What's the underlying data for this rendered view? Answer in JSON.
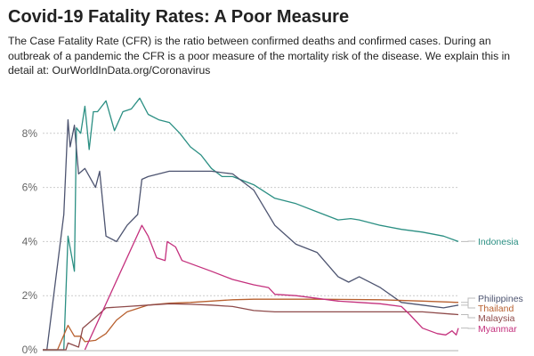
{
  "title": "Covid-19 Fatality Rates: A Poor Measure",
  "subtitle": "The Case Fatality Rate (CFR) is the ratio between confirmed deaths and confirmed cases. During an outbreak of a pandemic the CFR is a poor measure of the mortality risk of the disease. We explain this in detail at: OurWorldInData.org/Coronavirus",
  "chart_data": {
    "type": "line",
    "title": "Covid-19 Fatality Rates: A Poor Measure",
    "ylabel": "",
    "xlabel": "",
    "ylim": [
      0,
      9.5
    ],
    "xlim": [
      "2020-03-01",
      "2020-09-14"
    ],
    "yticks": [
      "0%",
      "2%",
      "4%",
      "6%",
      "8%"
    ],
    "grid": true,
    "legend": "right-end labels",
    "series": [
      {
        "name": "Indonesia",
        "color": "#2b8f83",
        "points": [
          [
            "2020-03-01",
            0
          ],
          [
            "2020-03-11",
            0
          ],
          [
            "2020-03-13",
            4.2
          ],
          [
            "2020-03-16",
            2.9
          ],
          [
            "2020-03-17",
            8.2
          ],
          [
            "2020-03-19",
            8.0
          ],
          [
            "2020-03-21",
            9.0
          ],
          [
            "2020-03-23",
            7.4
          ],
          [
            "2020-03-25",
            8.8
          ],
          [
            "2020-03-27",
            8.8
          ],
          [
            "2020-03-31",
            9.2
          ],
          [
            "2020-04-04",
            8.1
          ],
          [
            "2020-04-08",
            8.8
          ],
          [
            "2020-04-12",
            8.9
          ],
          [
            "2020-04-16",
            9.3
          ],
          [
            "2020-04-20",
            8.7
          ],
          [
            "2020-04-25",
            8.5
          ],
          [
            "2020-04-30",
            8.4
          ],
          [
            "2020-05-05",
            8.0
          ],
          [
            "2020-05-10",
            7.5
          ],
          [
            "2020-05-15",
            7.2
          ],
          [
            "2020-05-20",
            6.7
          ],
          [
            "2020-05-25",
            6.4
          ],
          [
            "2020-05-30",
            6.4
          ],
          [
            "2020-06-09",
            6.1
          ],
          [
            "2020-06-19",
            5.6
          ],
          [
            "2020-06-29",
            5.4
          ],
          [
            "2020-07-09",
            5.1
          ],
          [
            "2020-07-19",
            4.8
          ],
          [
            "2020-07-25",
            4.85
          ],
          [
            "2020-07-29",
            4.8
          ],
          [
            "2020-08-08",
            4.6
          ],
          [
            "2020-08-18",
            4.45
          ],
          [
            "2020-08-28",
            4.35
          ],
          [
            "2020-09-07",
            4.2
          ],
          [
            "2020-09-14",
            4.0
          ]
        ]
      },
      {
        "name": "Philippines",
        "color": "#4d5470",
        "points": [
          [
            "2020-03-01",
            0
          ],
          [
            "2020-03-03",
            0
          ],
          [
            "2020-03-11",
            5.0
          ],
          [
            "2020-03-13",
            8.5
          ],
          [
            "2020-03-14",
            7.5
          ],
          [
            "2020-03-16",
            8.3
          ],
          [
            "2020-03-18",
            6.5
          ],
          [
            "2020-03-21",
            6.7
          ],
          [
            "2020-03-26",
            6.0
          ],
          [
            "2020-03-28",
            6.6
          ],
          [
            "2020-03-31",
            4.2
          ],
          [
            "2020-04-05",
            4.0
          ],
          [
            "2020-04-10",
            4.6
          ],
          [
            "2020-04-15",
            5.0
          ],
          [
            "2020-04-17",
            6.3
          ],
          [
            "2020-04-20",
            6.4
          ],
          [
            "2020-04-30",
            6.6
          ],
          [
            "2020-05-10",
            6.6
          ],
          [
            "2020-05-20",
            6.6
          ],
          [
            "2020-05-30",
            6.5
          ],
          [
            "2020-06-09",
            5.9
          ],
          [
            "2020-06-19",
            4.6
          ],
          [
            "2020-06-29",
            3.9
          ],
          [
            "2020-07-09",
            3.6
          ],
          [
            "2020-07-19",
            2.7
          ],
          [
            "2020-07-24",
            2.5
          ],
          [
            "2020-07-29",
            2.7
          ],
          [
            "2020-08-08",
            2.3
          ],
          [
            "2020-08-18",
            1.75
          ],
          [
            "2020-08-28",
            1.65
          ],
          [
            "2020-09-07",
            1.55
          ],
          [
            "2020-09-14",
            1.65
          ]
        ]
      },
      {
        "name": "Thailand",
        "color": "#b8602f",
        "points": [
          [
            "2020-03-01",
            0
          ],
          [
            "2020-03-08",
            0
          ],
          [
            "2020-03-13",
            0.9
          ],
          [
            "2020-03-16",
            0.5
          ],
          [
            "2020-03-19",
            0.5
          ],
          [
            "2020-03-21",
            0.3
          ],
          [
            "2020-03-26",
            0.35
          ],
          [
            "2020-03-31",
            0.6
          ],
          [
            "2020-04-05",
            1.1
          ],
          [
            "2020-04-10",
            1.4
          ],
          [
            "2020-04-20",
            1.65
          ],
          [
            "2020-04-30",
            1.72
          ],
          [
            "2020-05-10",
            1.75
          ],
          [
            "2020-05-20",
            1.8
          ],
          [
            "2020-05-30",
            1.85
          ],
          [
            "2020-06-09",
            1.87
          ],
          [
            "2020-07-09",
            1.87
          ],
          [
            "2020-08-08",
            1.85
          ],
          [
            "2020-08-28",
            1.8
          ],
          [
            "2020-09-14",
            1.75
          ]
        ]
      },
      {
        "name": "Malaysia",
        "color": "#8e4a4a",
        "points": [
          [
            "2020-03-01",
            0
          ],
          [
            "2020-03-12",
            0
          ],
          [
            "2020-03-13",
            0.25
          ],
          [
            "2020-03-18",
            0.1
          ],
          [
            "2020-03-20",
            0.8
          ],
          [
            "2020-03-26",
            1.2
          ],
          [
            "2020-03-31",
            1.55
          ],
          [
            "2020-04-10",
            1.6
          ],
          [
            "2020-04-20",
            1.65
          ],
          [
            "2020-04-30",
            1.7
          ],
          [
            "2020-05-10",
            1.68
          ],
          [
            "2020-05-20",
            1.65
          ],
          [
            "2020-05-30",
            1.6
          ],
          [
            "2020-06-09",
            1.45
          ],
          [
            "2020-06-19",
            1.4
          ],
          [
            "2020-07-29",
            1.4
          ],
          [
            "2020-08-28",
            1.4
          ],
          [
            "2020-09-14",
            1.3
          ]
        ]
      },
      {
        "name": "Myanmar",
        "color": "#c4307d",
        "points": [
          [
            "2020-03-21",
            0
          ],
          [
            "2020-04-17",
            4.6
          ],
          [
            "2020-04-20",
            4.2
          ],
          [
            "2020-04-24",
            3.4
          ],
          [
            "2020-04-28",
            3.3
          ],
          [
            "2020-04-29",
            4.0
          ],
          [
            "2020-05-03",
            3.8
          ],
          [
            "2020-05-06",
            3.3
          ],
          [
            "2020-05-20",
            2.9
          ],
          [
            "2020-05-30",
            2.6
          ],
          [
            "2020-06-09",
            2.4
          ],
          [
            "2020-06-16",
            2.3
          ],
          [
            "2020-06-19",
            2.05
          ],
          [
            "2020-06-29",
            2.0
          ],
          [
            "2020-07-09",
            1.9
          ],
          [
            "2020-07-19",
            1.8
          ],
          [
            "2020-07-29",
            1.75
          ],
          [
            "2020-08-08",
            1.7
          ],
          [
            "2020-08-18",
            1.6
          ],
          [
            "2020-08-22",
            1.3
          ],
          [
            "2020-08-28",
            0.8
          ],
          [
            "2020-09-04",
            0.6
          ],
          [
            "2020-09-08",
            0.55
          ],
          [
            "2020-09-11",
            0.7
          ],
          [
            "2020-09-13",
            0.55
          ],
          [
            "2020-09-14",
            0.8
          ]
        ]
      }
    ]
  }
}
